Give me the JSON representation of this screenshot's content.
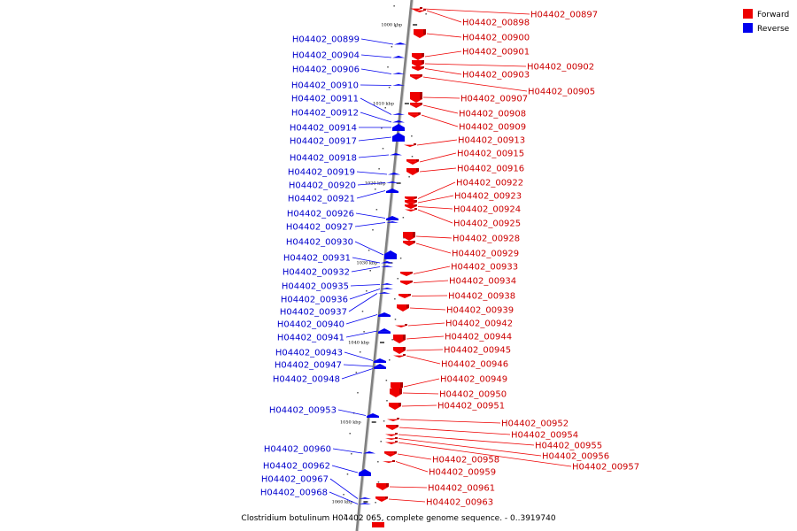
{
  "caption": "Clostridium botulinum H04402 065, complete genome sequence. - 0..3919740",
  "legend": [
    {
      "label": "Forward",
      "color": "#ee0000"
    },
    {
      "label": "Reverse",
      "color": "#0000ee"
    }
  ],
  "kbp_ticks": [
    "1000 kbp",
    "1010 kbp",
    "1020 kbp",
    "1030 kbp",
    "1040 kbp",
    "1050 kbp",
    "1060 kbp"
  ],
  "forward_genes": [
    "H04402_00897",
    "H04402_00898",
    "H04402_00900",
    "H04402_00901",
    "H04402_00902",
    "H04402_00903",
    "H04402_00905",
    "H04402_00907",
    "H04402_00908",
    "H04402_00909",
    "H04402_00913",
    "H04402_00915",
    "H04402_00916",
    "H04402_00922",
    "H04402_00923",
    "H04402_00924",
    "H04402_00925",
    "H04402_00928",
    "H04402_00929",
    "H04402_00933",
    "H04402_00934",
    "H04402_00938",
    "H04402_00939",
    "H04402_00942",
    "H04402_00944",
    "H04402_00945",
    "H04402_00946",
    "H04402_00949",
    "H04402_00950",
    "H04402_00951",
    "H04402_00952",
    "H04402_00954",
    "H04402_00955",
    "H04402_00956",
    "H04402_00957",
    "H04402_00958",
    "H04402_00959",
    "H04402_00961",
    "H04402_00963"
  ],
  "reverse_genes": [
    "H04402_00899",
    "H04402_00904",
    "H04402_00906",
    "H04402_00910",
    "H04402_00911",
    "H04402_00912",
    "H04402_00914",
    "H04402_00917",
    "H04402_00918",
    "H04402_00919",
    "H04402_00920",
    "H04402_00921",
    "H04402_00926",
    "H04402_00927",
    "H04402_00930",
    "H04402_00931",
    "H04402_00932",
    "H04402_00935",
    "H04402_00936",
    "H04402_00937",
    "H04402_00940",
    "H04402_00941",
    "H04402_00943",
    "H04402_00947",
    "H04402_00948",
    "H04402_00953",
    "H04402_00960",
    "H04402_00962",
    "H04402_00967",
    "H04402_00968"
  ]
}
